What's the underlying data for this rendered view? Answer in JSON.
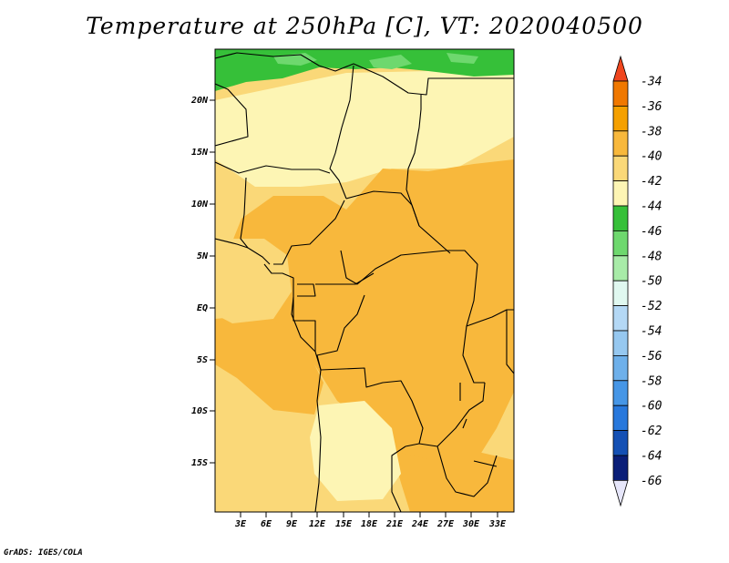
{
  "title": "Temperature at 250hPa [C], VT: 2020040500",
  "footer": "GrADS: IGES/COLA",
  "map": {
    "lat_labels": [
      "20N",
      "15N",
      "10N",
      "5N",
      "EQ",
      "5S",
      "10S",
      "15S"
    ],
    "lon_labels": [
      "3E",
      "6E",
      "9E",
      "12E",
      "15E",
      "18E",
      "21E",
      "24E",
      "27E",
      "30E",
      "33E"
    ]
  },
  "colorbar": {
    "labels": [
      "-34",
      "-36",
      "-38",
      "-40",
      "-42",
      "-44",
      "-46",
      "-48",
      "-50",
      "-52",
      "-54",
      "-56",
      "-58",
      "-60",
      "-62",
      "-64",
      "-66"
    ],
    "colors": [
      "#f0461e",
      "#f07800",
      "#f5a000",
      "#f8b83c",
      "#fad878",
      "#fdf5b4",
      "#36c039",
      "#6ed86e",
      "#a8eba8",
      "#e0f8f0",
      "#b4d8f5",
      "#96c8f0",
      "#6eb0ea",
      "#4696e6",
      "#2878dc",
      "#1450b4",
      "#0a1e78",
      "#e6e6fa"
    ]
  },
  "field_colors": {
    "band_42": "#fdf5b4",
    "band_40": "#fad878",
    "band_38": "#f8b83c",
    "band_44": "#36c039",
    "band_46": "#6ed86e"
  }
}
